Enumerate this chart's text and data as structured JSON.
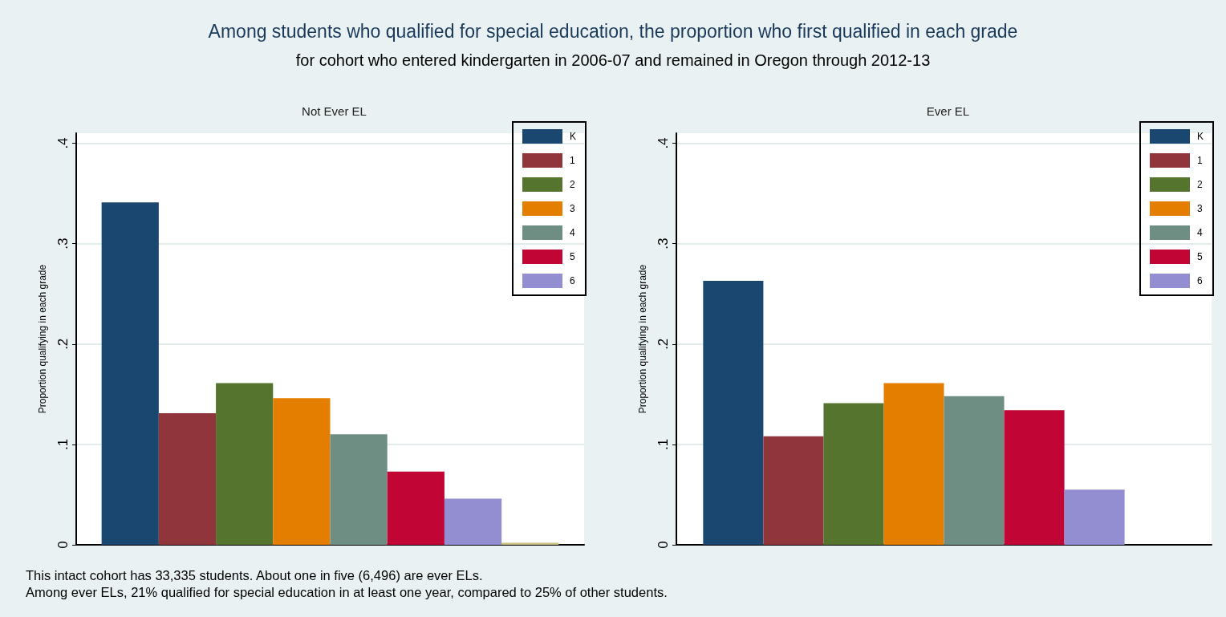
{
  "chart_data": [
    {
      "type": "bar",
      "title": "Not Ever EL",
      "ylabel": "Proportion qualifying in each grade",
      "categories": [
        null
      ],
      "annotations": [
        "Among students who qualified for special education, the proportion who first qualified in each grade",
        "for cohort who entered kindergarten in 2006-07 and remained in Oregon through 2012-13",
        "This intact cohort has 33,335 students. About one in five (6,496) are ever ELs.",
        "Among ever ELs, 21% qualified for special education in at least one year, compared to 25% of other students."
      ],
      "ylim": [
        0,
        0.41
      ],
      "yticks": [
        {
          "value": 0,
          "label": "0"
        },
        {
          "value": 0.1,
          "label": ".1"
        },
        {
          "value": 0.2,
          "label": ".2"
        },
        {
          "value": 0.3,
          "label": ".3"
        },
        {
          "value": 0.4,
          "label": ".4"
        }
      ],
      "grid": "y",
      "legend": "top right",
      "series": [
        {
          "name": "K",
          "color": "#1a476f",
          "values": [
            0.341
          ]
        },
        {
          "name": "1",
          "color": "#90353b",
          "values": [
            0.131
          ]
        },
        {
          "name": "2",
          "color": "#55752f",
          "values": [
            0.161
          ]
        },
        {
          "name": "3",
          "color": "#e37e00",
          "values": [
            0.146
          ]
        },
        {
          "name": "4",
          "color": "#6e8e84",
          "values": [
            0.11
          ]
        },
        {
          "name": "5",
          "color": "#c10534",
          "values": [
            0.073
          ]
        },
        {
          "name": "6",
          "color": "#938dd2",
          "values": [
            0.046
          ]
        },
        {
          "color": "#cac27e",
          "values": [
            0.002
          ]
        }
      ]
    },
    {
      "type": "bar",
      "title": "Ever EL",
      "ylabel": "Proportion qualifying in each grade",
      "categories": [
        null
      ],
      "ylim": [
        0,
        0.41
      ],
      "yticks": [
        {
          "value": 0,
          "label": "0"
        },
        {
          "value": 0.1,
          "label": ".1"
        },
        {
          "value": 0.2,
          "label": ".2"
        },
        {
          "value": 0.3,
          "label": ".3"
        },
        {
          "value": 0.4,
          "label": ".4"
        }
      ],
      "grid": "y",
      "legend": "top right",
      "series": [
        {
          "name": "K",
          "color": "#1a476f",
          "values": [
            0.263
          ]
        },
        {
          "name": "1",
          "color": "#90353b",
          "values": [
            0.108
          ]
        },
        {
          "name": "2",
          "color": "#55752f",
          "values": [
            0.141
          ]
        },
        {
          "name": "3",
          "color": "#e37e00",
          "values": [
            0.161
          ]
        },
        {
          "name": "4",
          "color": "#6e8e84",
          "values": [
            0.148
          ]
        },
        {
          "name": "5",
          "color": "#c10534",
          "values": [
            0.134
          ]
        },
        {
          "name": "6",
          "color": "#938dd2",
          "values": [
            0.055
          ]
        },
        {
          "color": "#cac27e",
          "values": [
            null
          ]
        }
      ]
    }
  ]
}
